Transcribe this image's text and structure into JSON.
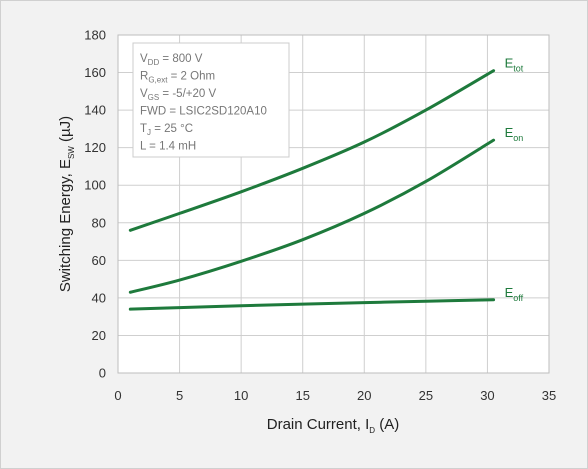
{
  "chart_data": {
    "type": "line",
    "title": "",
    "xlabel": {
      "main": "Drain Current, I",
      "sub": "D",
      "unit": " (A)"
    },
    "ylabel": {
      "main": "Switching Energy, E",
      "sub": "SW",
      "unit": " (µJ)"
    },
    "xlim": [
      0,
      35
    ],
    "ylim": [
      0,
      180
    ],
    "xticks": [
      0,
      5,
      10,
      15,
      20,
      25,
      30,
      35
    ],
    "yticks": [
      0,
      20,
      40,
      60,
      80,
      100,
      120,
      140,
      160,
      180
    ],
    "grid": true,
    "line_color": "#1e7a3c",
    "series": [
      {
        "label_main": "E",
        "label_sub": "tot",
        "x": [
          1,
          5,
          10,
          15,
          20,
          25,
          30.5
        ],
        "y": [
          76,
          85,
          96.5,
          109,
          123,
          140,
          161
        ]
      },
      {
        "label_main": "E",
        "label_sub": "on",
        "x": [
          1,
          5,
          10,
          15,
          20,
          25,
          30.5
        ],
        "y": [
          43,
          49.5,
          59.5,
          71,
          85,
          102,
          124
        ]
      },
      {
        "label_main": "E",
        "label_sub": "off",
        "x": [
          1,
          5,
          10,
          15,
          20,
          25,
          30.5
        ],
        "y": [
          34,
          34.8,
          35.8,
          36.7,
          37.5,
          38.2,
          39
        ]
      }
    ],
    "conditions": [
      {
        "main": "V",
        "sub": "DD",
        "rest": " = 800 V"
      },
      {
        "main": "R",
        "sub": "G,ext",
        "rest": " = 2 Ohm"
      },
      {
        "main": "V",
        "sub": "GS",
        "rest": " = -5/+20 V"
      },
      {
        "main": "FWD = LSIC2SD120A10",
        "sub": "",
        "rest": ""
      },
      {
        "main": "T",
        "sub": "J",
        "rest": " = 25 °C"
      },
      {
        "main": "L = 1.4 mH",
        "sub": "",
        "rest": ""
      }
    ],
    "legend_position": "top-left"
  }
}
